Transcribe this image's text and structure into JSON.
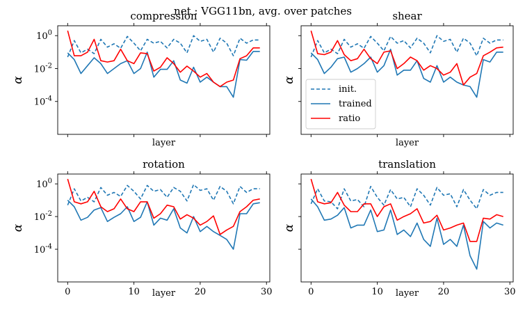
{
  "figure_title": "net : VGG11bn, avg. over patches",
  "chart_data": [
    {
      "type": "line",
      "title": "compression",
      "xlabel": "layer",
      "ylabel": "α",
      "yscale": "log",
      "ylim": [
        1e-06,
        4
      ],
      "xlim": [
        -1.5,
        30.5
      ],
      "xticks": [
        0,
        10,
        20,
        30
      ],
      "yticks": [
        1,
        0.01,
        0.0001
      ],
      "ytick_labels": [
        "10^0",
        "10^-2",
        "10^-4"
      ],
      "series": [
        {
          "name": "init.",
          "color": "#1f77b4",
          "style": "dashed",
          "x": [
            0,
            1,
            2,
            3,
            4,
            5,
            6,
            7,
            8,
            9,
            10,
            11,
            12,
            13,
            14,
            15,
            16,
            17,
            18,
            19,
            20,
            21,
            22,
            23,
            24,
            25,
            26,
            27,
            28,
            29
          ],
          "y": [
            0.05,
            0.5,
            0.09,
            0.15,
            0.08,
            0.6,
            0.2,
            0.32,
            0.17,
            0.9,
            0.35,
            0.12,
            0.6,
            0.35,
            0.45,
            0.18,
            0.6,
            0.35,
            0.09,
            1.0,
            0.45,
            0.6,
            0.1,
            0.7,
            0.35,
            0.06,
            0.7,
            0.35,
            0.55,
            0.55
          ]
        },
        {
          "name": "trained",
          "color": "#1f77b4",
          "style": "solid",
          "x": [
            0,
            1,
            2,
            3,
            4,
            5,
            6,
            7,
            8,
            9,
            10,
            11,
            12,
            13,
            14,
            15,
            16,
            17,
            18,
            19,
            20,
            21,
            22,
            23,
            24,
            25,
            26,
            27,
            28,
            29
          ],
          "y": [
            0.09,
            0.035,
            0.005,
            0.015,
            0.045,
            0.02,
            0.005,
            0.01,
            0.02,
            0.03,
            0.005,
            0.01,
            0.1,
            0.003,
            0.009,
            0.009,
            0.03,
            0.002,
            0.0013,
            0.012,
            0.0015,
            0.003,
            0.0015,
            0.0008,
            0.0008,
            0.00018,
            0.035,
            0.032,
            0.11,
            0.11
          ]
        },
        {
          "name": "ratio",
          "color": "#ff0000",
          "style": "solid",
          "x": [
            0,
            1,
            2,
            3,
            4,
            5,
            6,
            7,
            8,
            9,
            10,
            11,
            12,
            13,
            14,
            15,
            16,
            17,
            18,
            19,
            20,
            21,
            22,
            23,
            24,
            25,
            26,
            27,
            28,
            29
          ],
          "y": [
            2.0,
            0.06,
            0.06,
            0.1,
            0.6,
            0.03,
            0.025,
            0.03,
            0.15,
            0.03,
            0.02,
            0.09,
            0.08,
            0.007,
            0.012,
            0.045,
            0.02,
            0.006,
            0.014,
            0.007,
            0.003,
            0.005,
            0.0015,
            0.0008,
            0.0015,
            0.002,
            0.04,
            0.06,
            0.18,
            0.18
          ]
        }
      ]
    },
    {
      "type": "line",
      "title": "shear",
      "xlabel": "layer",
      "ylabel": "α",
      "yscale": "log",
      "ylim": [
        1e-06,
        4
      ],
      "xlim": [
        -1.5,
        30.5
      ],
      "xticks": [
        0,
        10,
        20,
        30
      ],
      "yticks": [
        1,
        0.01,
        0.0001
      ],
      "ytick_labels": [
        "10^0",
        "10^-2",
        "10^-4"
      ],
      "legend": "center-left",
      "series": [
        {
          "name": "init.",
          "color": "#1f77b4",
          "style": "dashed",
          "x": [
            0,
            1,
            2,
            3,
            4,
            5,
            6,
            7,
            8,
            9,
            10,
            11,
            12,
            13,
            14,
            15,
            16,
            17,
            18,
            19,
            20,
            21,
            22,
            23,
            24,
            25,
            26,
            27,
            28,
            29
          ],
          "y": [
            0.05,
            0.5,
            0.09,
            0.15,
            0.08,
            0.6,
            0.2,
            0.32,
            0.17,
            0.9,
            0.35,
            0.12,
            0.9,
            0.35,
            0.5,
            0.18,
            0.7,
            0.35,
            0.09,
            1.0,
            0.45,
            0.6,
            0.1,
            0.7,
            0.35,
            0.06,
            0.7,
            0.35,
            0.55,
            0.55
          ]
        },
        {
          "name": "trained",
          "color": "#1f77b4",
          "style": "solid",
          "x": [
            0,
            1,
            2,
            3,
            4,
            5,
            6,
            7,
            8,
            9,
            10,
            11,
            12,
            13,
            14,
            15,
            16,
            17,
            18,
            19,
            20,
            21,
            22,
            23,
            24,
            25,
            26,
            27,
            28,
            29
          ],
          "y": [
            0.09,
            0.035,
            0.005,
            0.012,
            0.04,
            0.05,
            0.006,
            0.01,
            0.02,
            0.05,
            0.006,
            0.015,
            0.15,
            0.004,
            0.008,
            0.008,
            0.03,
            0.0025,
            0.0015,
            0.015,
            0.0015,
            0.003,
            0.0015,
            0.001,
            0.0008,
            0.00018,
            0.035,
            0.025,
            0.1,
            0.1
          ]
        },
        {
          "name": "ratio",
          "color": "#ff0000",
          "style": "solid",
          "x": [
            0,
            1,
            2,
            3,
            4,
            5,
            6,
            7,
            8,
            9,
            10,
            11,
            12,
            13,
            14,
            15,
            16,
            17,
            18,
            19,
            20,
            21,
            22,
            23,
            24,
            25,
            26,
            27,
            28,
            29
          ],
          "y": [
            2.0,
            0.08,
            0.07,
            0.1,
            0.5,
            0.07,
            0.03,
            0.04,
            0.15,
            0.04,
            0.02,
            0.1,
            0.12,
            0.01,
            0.02,
            0.05,
            0.03,
            0.008,
            0.015,
            0.01,
            0.004,
            0.006,
            0.02,
            0.001,
            0.003,
            0.005,
            0.06,
            0.1,
            0.18,
            0.2
          ]
        }
      ]
    },
    {
      "type": "line",
      "title": "rotation",
      "xlabel": "layer",
      "ylabel": "α",
      "yscale": "log",
      "ylim": [
        1e-06,
        4
      ],
      "xlim": [
        -1.5,
        30.5
      ],
      "xticks": [
        0,
        10,
        20,
        30
      ],
      "yticks": [
        1,
        0.01,
        0.0001
      ],
      "ytick_labels": [
        "10^0",
        "10^-2",
        "10^-4"
      ],
      "series": [
        {
          "name": "init.",
          "color": "#1f77b4",
          "style": "dashed",
          "x": [
            0,
            1,
            2,
            3,
            4,
            5,
            6,
            7,
            8,
            9,
            10,
            11,
            12,
            13,
            14,
            15,
            16,
            17,
            18,
            19,
            20,
            21,
            22,
            23,
            24,
            25,
            26,
            27,
            28,
            29
          ],
          "y": [
            0.05,
            0.5,
            0.09,
            0.15,
            0.08,
            0.6,
            0.2,
            0.3,
            0.17,
            0.8,
            0.35,
            0.12,
            0.8,
            0.35,
            0.45,
            0.15,
            0.6,
            0.35,
            0.09,
            0.9,
            0.4,
            0.5,
            0.1,
            0.7,
            0.35,
            0.06,
            0.7,
            0.3,
            0.5,
            0.5
          ]
        },
        {
          "name": "trained",
          "color": "#1f77b4",
          "style": "solid",
          "x": [
            0,
            1,
            2,
            3,
            4,
            5,
            6,
            7,
            8,
            9,
            10,
            11,
            12,
            13,
            14,
            15,
            16,
            17,
            18,
            19,
            20,
            21,
            22,
            23,
            24,
            25,
            26,
            27,
            28,
            29
          ],
          "y": [
            0.1,
            0.04,
            0.006,
            0.009,
            0.025,
            0.035,
            0.005,
            0.009,
            0.015,
            0.04,
            0.005,
            0.009,
            0.08,
            0.003,
            0.008,
            0.006,
            0.03,
            0.002,
            0.001,
            0.01,
            0.0012,
            0.0025,
            0.0012,
            0.0007,
            0.0004,
            0.0001,
            0.015,
            0.015,
            0.06,
            0.07
          ]
        },
        {
          "name": "ratio",
          "color": "#ff0000",
          "style": "solid",
          "x": [
            0,
            1,
            2,
            3,
            4,
            5,
            6,
            7,
            8,
            9,
            10,
            11,
            12,
            13,
            14,
            15,
            16,
            17,
            18,
            19,
            20,
            21,
            22,
            23,
            24,
            25,
            26,
            27,
            28,
            29
          ],
          "y": [
            2.0,
            0.08,
            0.06,
            0.08,
            0.35,
            0.04,
            0.02,
            0.03,
            0.12,
            0.03,
            0.02,
            0.08,
            0.08,
            0.008,
            0.015,
            0.05,
            0.04,
            0.007,
            0.013,
            0.008,
            0.003,
            0.005,
            0.011,
            0.0008,
            0.0015,
            0.0025,
            0.02,
            0.04,
            0.1,
            0.12
          ]
        }
      ]
    },
    {
      "type": "line",
      "title": "translation",
      "xlabel": "layer",
      "ylabel": "α",
      "yscale": "log",
      "ylim": [
        1e-06,
        4
      ],
      "xlim": [
        -1.5,
        30.5
      ],
      "xticks": [
        0,
        10,
        20,
        30
      ],
      "yticks": [
        1,
        0.01,
        0.0001
      ],
      "ytick_labels": [
        "10^0",
        "10^-2",
        "10^-4"
      ],
      "series": [
        {
          "name": "init.",
          "color": "#1f77b4",
          "style": "dashed",
          "x": [
            0,
            1,
            2,
            3,
            4,
            5,
            6,
            7,
            8,
            9,
            10,
            11,
            12,
            13,
            14,
            15,
            16,
            17,
            18,
            19,
            20,
            21,
            22,
            23,
            24,
            25,
            26,
            27,
            28,
            29
          ],
          "y": [
            0.06,
            0.5,
            0.09,
            0.08,
            0.03,
            0.5,
            0.09,
            0.11,
            0.04,
            0.7,
            0.15,
            0.05,
            0.45,
            0.12,
            0.15,
            0.04,
            0.5,
            0.2,
            0.05,
            0.6,
            0.2,
            0.25,
            0.04,
            0.45,
            0.1,
            0.03,
            0.45,
            0.2,
            0.3,
            0.3
          ]
        },
        {
          "name": "trained",
          "color": "#1f77b4",
          "style": "solid",
          "x": [
            0,
            1,
            2,
            3,
            4,
            5,
            6,
            7,
            8,
            9,
            10,
            11,
            12,
            13,
            14,
            15,
            16,
            17,
            18,
            19,
            20,
            21,
            22,
            23,
            24,
            25,
            26,
            27,
            28,
            29
          ],
          "y": [
            0.12,
            0.04,
            0.006,
            0.007,
            0.012,
            0.035,
            0.002,
            0.003,
            0.003,
            0.025,
            0.0012,
            0.0015,
            0.025,
            0.0008,
            0.0015,
            0.0006,
            0.004,
            0.0004,
            0.00015,
            0.008,
            0.0002,
            0.0004,
            0.00015,
            0.003,
            4e-05,
            6e-06,
            0.005,
            0.002,
            0.004,
            0.003
          ]
        },
        {
          "name": "ratio",
          "color": "#ff0000",
          "style": "solid",
          "x": [
            0,
            1,
            2,
            3,
            4,
            5,
            6,
            7,
            8,
            9,
            10,
            11,
            12,
            13,
            14,
            15,
            16,
            17,
            18,
            19,
            20,
            21,
            22,
            23,
            24,
            25,
            26,
            27,
            28,
            29
          ],
          "y": [
            2.0,
            0.08,
            0.06,
            0.07,
            0.3,
            0.05,
            0.02,
            0.02,
            0.06,
            0.06,
            0.01,
            0.04,
            0.06,
            0.006,
            0.01,
            0.015,
            0.03,
            0.004,
            0.005,
            0.012,
            0.0015,
            0.002,
            0.003,
            0.004,
            0.0003,
            0.0003,
            0.008,
            0.007,
            0.013,
            0.01
          ]
        }
      ]
    }
  ]
}
